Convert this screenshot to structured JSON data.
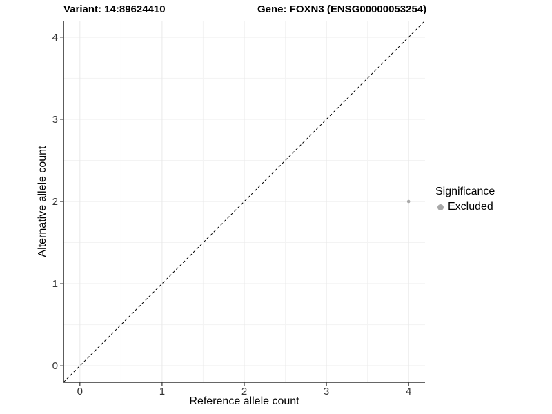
{
  "chart_data": {
    "type": "scatter",
    "titles": {
      "left": "Variant: 14:89624410",
      "right": "Gene: FOXN3 (ENSG00000053254)"
    },
    "xlabel": "Reference allele count",
    "ylabel": "Alternative allele count",
    "xlim": [
      -0.2,
      4.2
    ],
    "ylim": [
      -0.2,
      4.2
    ],
    "xticks": [
      0,
      1,
      2,
      3,
      4
    ],
    "yticks": [
      0,
      1,
      2,
      3,
      4
    ],
    "minor_step": 0.5,
    "grid": true,
    "points": [
      {
        "x": 4,
        "y": 2,
        "significance": "Excluded",
        "color": "#a8a8a8"
      }
    ],
    "reference_line": {
      "from": [
        -0.2,
        -0.2
      ],
      "to": [
        4.2,
        4.2
      ],
      "style": "dashed",
      "color": "#000000"
    },
    "legend": {
      "title": "Significance",
      "position": "right",
      "items": [
        {
          "label": "Excluded",
          "color": "#a8a8a8"
        }
      ]
    },
    "colors": {
      "axis_line": "#333333",
      "tick": "#333333",
      "tick_label": "#333333",
      "grid_major": "#e8e8e8",
      "grid_minor": "#f3f3f3",
      "background": "#ffffff"
    }
  }
}
